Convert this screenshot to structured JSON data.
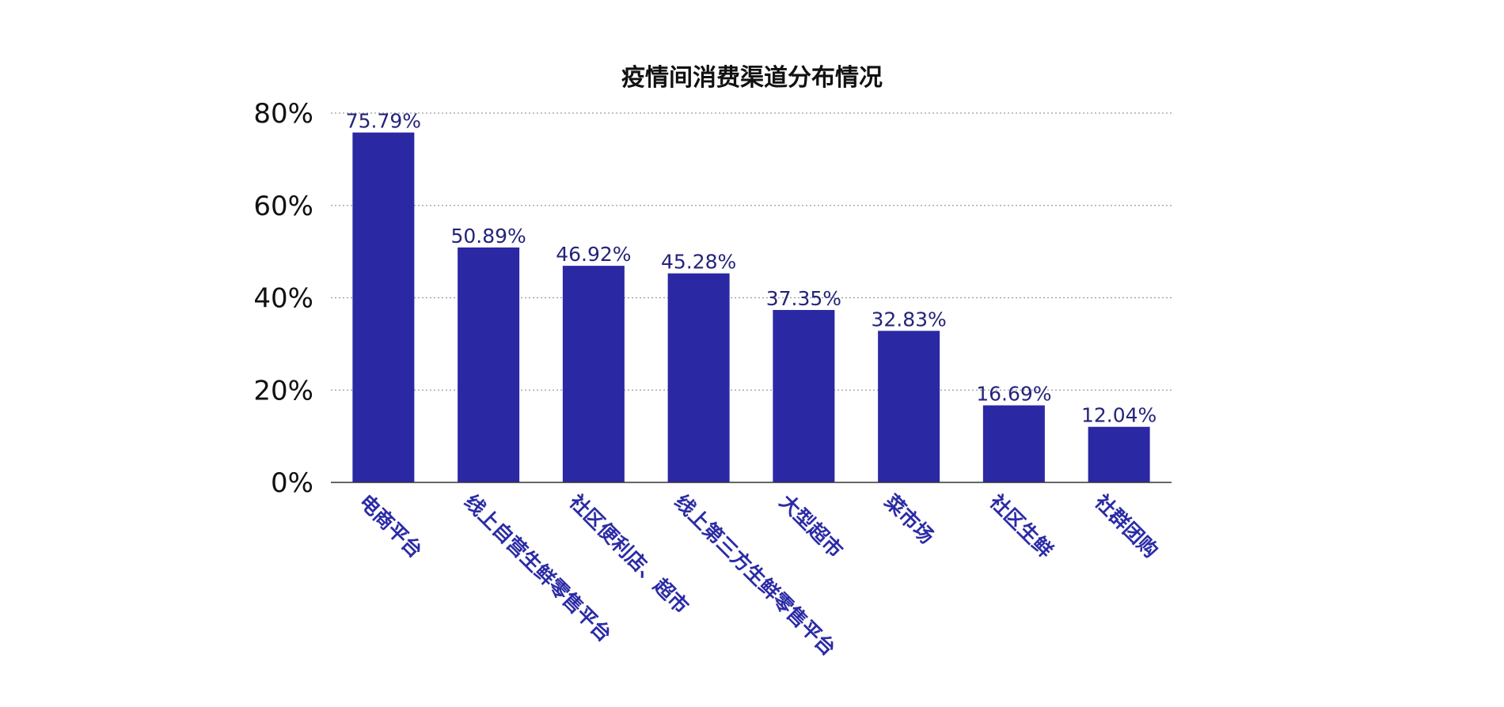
{
  "chart_data": {
    "type": "bar",
    "title": "疫情间消费渠道分布情况",
    "xlabel": "",
    "ylabel": "",
    "categories": [
      "电商平台",
      "线上自营生鲜零售平台",
      "社区便利店、超市",
      "线上第三方生鲜零售平台",
      "大型超市",
      "菜市场",
      "社区生鲜",
      "社群团购"
    ],
    "values": [
      75.79,
      50.89,
      46.92,
      45.28,
      37.35,
      32.83,
      16.69,
      12.04
    ],
    "data_labels": [
      "75.79%",
      "50.89%",
      "46.92%",
      "45.28%",
      "37.35%",
      "32.83%",
      "16.69%",
      "12.04%"
    ],
    "ylim": [
      0,
      80
    ],
    "yticks": [
      0,
      20,
      40,
      60,
      80
    ],
    "ytick_labels": [
      "0%",
      "20%",
      "40%",
      "60%",
      "80%"
    ],
    "grid": true,
    "legend": "none",
    "colors": {
      "bar": "#2a28a3",
      "datalabel": "#24247a",
      "xlabel": "#2b2ba6",
      "grid": "#9a9a9a",
      "axis": "#333333",
      "text": "#111111"
    }
  }
}
